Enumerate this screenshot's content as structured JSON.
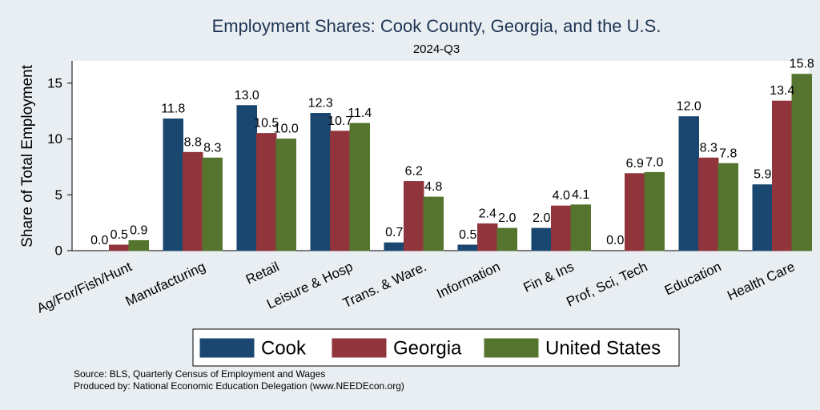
{
  "chart_data": {
    "type": "bar",
    "title": "Employment Shares: Cook County, Georgia, and the U.S.",
    "subtitle": "2024-Q3",
    "xlabel": "",
    "ylabel": "Share of Total Employment",
    "ylim": [
      0,
      17
    ],
    "yticks": [
      0,
      5,
      10,
      15
    ],
    "grid": false,
    "legend_position": "bottom",
    "categories": [
      "Ag/For/Fish/Hunt",
      "Manufacturing",
      "Retail",
      "Leisure & Hosp",
      "Trans. & Ware.",
      "Information",
      "Fin & Ins",
      "Prof, Sci, Tech",
      "Education",
      "Health Care"
    ],
    "series": [
      {
        "name": "Cook",
        "color": "#1a476f",
        "values": [
          0.0,
          11.8,
          13.0,
          12.3,
          0.7,
          0.5,
          2.0,
          0.0,
          12.0,
          5.9
        ]
      },
      {
        "name": "Georgia",
        "color": "#90353b",
        "values": [
          0.5,
          8.8,
          10.5,
          10.7,
          6.2,
          2.4,
          4.0,
          6.9,
          8.3,
          13.4
        ]
      },
      {
        "name": "United States",
        "color": "#55752f",
        "values": [
          0.9,
          8.3,
          10.0,
          11.4,
          4.8,
          2.0,
          4.1,
          7.0,
          7.8,
          15.8
        ]
      }
    ]
  },
  "footer": {
    "source": "Source: BLS, Quarterly Census of Employment and Wages",
    "produced_by": "Produced by: National Economic Education Delegation (www.NEEDEcon.org)"
  }
}
